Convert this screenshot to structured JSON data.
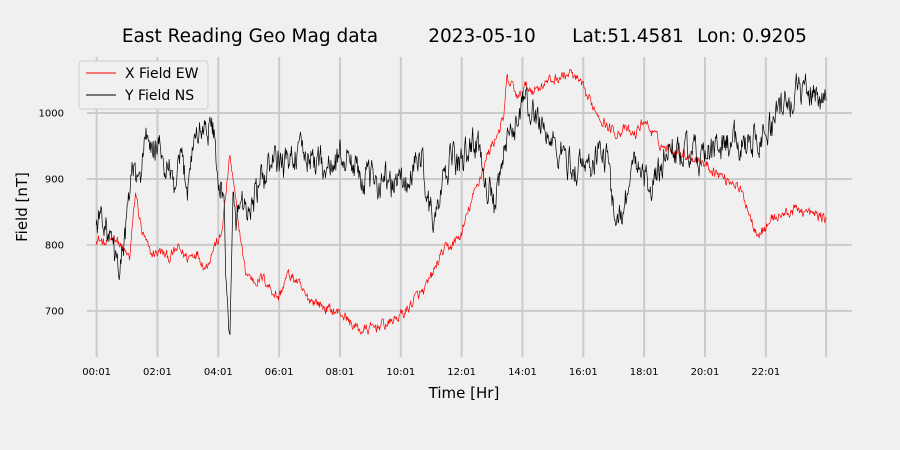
{
  "chart_data": {
    "type": "line",
    "title_parts": [
      "East Reading Geo Mag data",
      "2023-05-10",
      "Lat:51.4581",
      "Lon: 0.9205"
    ],
    "xlabel": "Time  [Hr]",
    "ylabel": "Field  [nT]",
    "x_unit": "hour",
    "xlim": [
      -0.3,
      24.85
    ],
    "ylim": [
      630,
      1085
    ],
    "x_ticks": [
      0.0167,
      2.0167,
      4.0167,
      6.0167,
      8.0167,
      10.0167,
      12.0167,
      14.0167,
      16.0167,
      18.0167,
      20.0167,
      22.0167
    ],
    "x_tick_labels": [
      "00:01",
      "02:01",
      "04:01",
      "06:01",
      "08:01",
      "10:01",
      "12:01",
      "14:01",
      "16:01",
      "18:01",
      "20:01",
      "22:01"
    ],
    "x_grid_only": [
      24.0
    ],
    "y_ticks": [
      700,
      800,
      900,
      1000
    ],
    "y_tick_labels": [
      "700",
      "800",
      "900",
      "1000"
    ],
    "grid": true,
    "legend_position": "top-left",
    "colors": {
      "background": "#f0f0f0",
      "grid": "#cbcbcb",
      "x_field": "#ff0000",
      "y_field": "#000000"
    },
    "series": [
      {
        "name": "X Field EW",
        "color": "#ff0000",
        "x": [
          0,
          0.3,
          0.6,
          0.9,
          1.1,
          1.3,
          1.5,
          1.8,
          2.1,
          2.4,
          2.7,
          3.0,
          3.3,
          3.6,
          3.9,
          4.1,
          4.25,
          4.4,
          4.6,
          4.9,
          5.2,
          5.5,
          5.8,
          6.0,
          6.3,
          6.6,
          6.9,
          7.2,
          7.5,
          7.8,
          8.1,
          8.4,
          8.7,
          9.0,
          9.3,
          9.6,
          9.9,
          10.2,
          10.5,
          10.8,
          11.1,
          11.4,
          11.7,
          12.0,
          12.3,
          12.6,
          12.9,
          13.2,
          13.4,
          13.5,
          13.7,
          13.9,
          14.1,
          14.4,
          14.7,
          15.0,
          15.3,
          15.6,
          15.9,
          16.2,
          16.5,
          16.8,
          17.1,
          17.4,
          17.7,
          18.0,
          18.3,
          18.6,
          18.9,
          19.2,
          19.5,
          19.8,
          20.1,
          20.4,
          20.7,
          21.0,
          21.2,
          21.4,
          21.6,
          21.8,
          22.0,
          22.2,
          22.5,
          22.8,
          23.1,
          23.4,
          23.7,
          24.0
        ],
        "values": [
          812,
          800,
          815,
          790,
          780,
          880,
          820,
          785,
          790,
          780,
          795,
          780,
          790,
          765,
          800,
          810,
          870,
          935,
          860,
          760,
          745,
          750,
          730,
          720,
          755,
          745,
          720,
          715,
          705,
          700,
          695,
          680,
          670,
          672,
          678,
          680,
          690,
          700,
          720,
          730,
          760,
          790,
          800,
          815,
          860,
          900,
          940,
          970,
          990,
          1050,
          1040,
          1020,
          1040,
          1035,
          1045,
          1050,
          1055,
          1060,
          1045,
          1020,
          1000,
          980,
          970,
          975,
          965,
          990,
          970,
          950,
          945,
          940,
          935,
          930,
          920,
          910,
          900,
          895,
          880,
          860,
          830,
          820,
          825,
          840,
          845,
          850,
          855,
          848,
          845,
          840
        ]
      },
      {
        "name": "Y Field NS",
        "color": "#000000",
        "x": [
          0,
          0.2,
          0.4,
          0.5,
          0.7,
          0.9,
          1.0,
          1.2,
          1.4,
          1.6,
          1.8,
          2.0,
          2.2,
          2.4,
          2.6,
          2.8,
          3.0,
          3.2,
          3.4,
          3.6,
          3.9,
          4.0,
          4.1,
          4.2,
          4.3,
          4.4,
          4.5,
          4.6,
          4.8,
          5.0,
          5.3,
          5.6,
          5.9,
          6.2,
          6.5,
          6.8,
          7.1,
          7.4,
          7.7,
          8.0,
          8.3,
          8.6,
          8.9,
          9.2,
          9.5,
          9.7,
          9.9,
          10.2,
          10.5,
          10.7,
          10.9,
          11.1,
          11.3,
          11.5,
          11.7,
          11.9,
          12.1,
          12.3,
          12.5,
          12.7,
          12.9,
          13.1,
          13.2,
          13.4,
          13.6,
          13.8,
          14.0,
          14.3,
          14.6,
          14.9,
          15.2,
          15.5,
          15.7,
          15.9,
          16.2,
          16.5,
          16.8,
          17.0,
          17.3,
          17.6,
          17.9,
          18.2,
          18.5,
          18.8,
          19.1,
          19.4,
          19.7,
          20.0,
          20.3,
          20.6,
          20.9,
          21.2,
          21.5,
          21.8,
          22.1,
          22.4,
          22.7,
          23.0,
          23.3,
          23.6,
          23.9,
          24.0
        ],
        "values": [
          830,
          850,
          810,
          800,
          760,
          800,
          830,
          920,
          880,
          970,
          930,
          960,
          920,
          910,
          880,
          930,
          890,
          960,
          970,
          980,
          975,
          870,
          880,
          850,
          720,
          650,
          860,
          840,
          870,
          850,
          880,
          910,
          930,
          920,
          940,
          935,
          930,
          925,
          915,
          935,
          930,
          915,
          900,
          895,
          905,
          885,
          900,
          890,
          920,
          940,
          870,
          830,
          870,
          900,
          940,
          920,
          930,
          950,
          960,
          920,
          890,
          850,
          870,
          940,
          960,
          985,
          1020,
          1000,
          990,
          960,
          940,
          930,
          910,
          920,
          920,
          940,
          930,
          860,
          850,
          910,
          930,
          880,
          910,
          950,
          940,
          940,
          935,
          930,
          940,
          950,
          960,
          955,
          960,
          965,
          970,
          1000,
          1010,
          1030,
          1040,
          1030,
          1025,
          1020
        ]
      }
    ]
  }
}
